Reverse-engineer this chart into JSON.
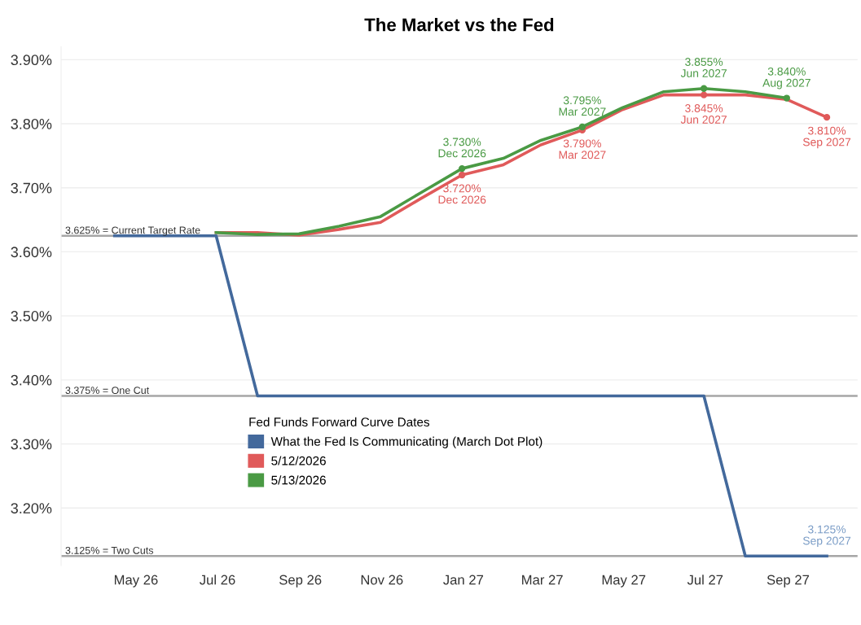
{
  "chart_data": {
    "type": "line",
    "title": "The Market vs the Fed",
    "legend_title": "Fed Funds Forward Curve Dates",
    "legend": "bottom",
    "grid": "y",
    "marker": "none",
    "line_style": "solid",
    "xlim": [
      "2026-03-06",
      "2027-10-23"
    ],
    "ylim": [
      3.11,
      3.92
    ],
    "xticks": [
      {
        "value": "2026-05-01",
        "label": "May 26"
      },
      {
        "value": "2026-07-01",
        "label": "Jul 26"
      },
      {
        "value": "2026-09-01",
        "label": "Sep 26"
      },
      {
        "value": "2026-11-01",
        "label": "Nov 26"
      },
      {
        "value": "2027-01-01",
        "label": "Jan 27"
      },
      {
        "value": "2027-03-01",
        "label": "Mar 27"
      },
      {
        "value": "2027-05-01",
        "label": "May 27"
      },
      {
        "value": "2027-07-01",
        "label": "Jul 27"
      },
      {
        "value": "2027-09-01",
        "label": "Sep 27"
      }
    ],
    "yticks": [
      {
        "value": 3.2,
        "label": "3.20%"
      },
      {
        "value": 3.3,
        "label": "3.30%"
      },
      {
        "value": 3.4,
        "label": "3.40%"
      },
      {
        "value": 3.5,
        "label": "3.50%"
      },
      {
        "value": 3.6,
        "label": "3.60%"
      },
      {
        "value": 3.7,
        "label": "3.70%"
      },
      {
        "value": 3.8,
        "label": "3.80%"
      },
      {
        "value": 3.9,
        "label": "3.90%"
      }
    ],
    "ref_lines": [
      {
        "axis": "y",
        "value": 3.625,
        "label": "3.625% = Current Target Rate",
        "color": "#a6a6a6"
      },
      {
        "axis": "y",
        "value": 3.375,
        "label": "3.375% = One Cut",
        "color": "#a6a6a6"
      },
      {
        "axis": "y",
        "value": 3.125,
        "label": "3.125% = Two Cuts",
        "color": "#a6a6a6"
      }
    ],
    "series": [
      {
        "name": "What the Fed Is Communicating (March Dot Plot)",
        "color": "#43699c",
        "x": [
          "2026-04-15",
          "2026-06-30",
          "2026-07-31",
          "2027-06-30",
          "2027-07-31",
          "2027-09-30"
        ],
        "values": [
          3.625,
          3.625,
          3.375,
          3.375,
          3.125,
          3.125
        ],
        "value_labels": [
          null,
          null,
          null,
          null,
          null,
          "3.125%\nSep 2027"
        ]
      },
      {
        "name": "5/12/2026",
        "color": "#e05a5a",
        "x": [
          "2026-06-30",
          "2026-07-31",
          "2026-08-31",
          "2026-09-30",
          "2026-10-31",
          "2026-11-30",
          "2026-12-31",
          "2027-01-31",
          "2027-02-28",
          "2027-03-31",
          "2027-04-30",
          "2027-05-31",
          "2027-06-30",
          "2027-07-31",
          "2027-08-31",
          "2027-09-30"
        ],
        "values": [
          3.63,
          3.63,
          3.626,
          3.635,
          3.646,
          3.683,
          3.72,
          3.736,
          3.767,
          3.79,
          3.822,
          3.845,
          3.845,
          3.845,
          3.838,
          3.81
        ],
        "value_labels": [
          null,
          null,
          null,
          null,
          null,
          null,
          "3.720%\nDec 2026",
          null,
          null,
          "3.790%\nMar 2027",
          null,
          null,
          "3.845%\nJun 2027",
          null,
          null,
          "3.810%\nSep 2027"
        ]
      },
      {
        "name": "5/13/2026",
        "color": "#4a9a44",
        "x": [
          "2026-06-30",
          "2026-07-31",
          "2026-08-31",
          "2026-09-30",
          "2026-10-31",
          "2026-11-30",
          "2026-12-31",
          "2027-01-31",
          "2027-02-28",
          "2027-03-31",
          "2027-04-30",
          "2027-05-31",
          "2027-06-30",
          "2027-07-31",
          "2027-08-31"
        ],
        "values": [
          3.63,
          3.627,
          3.628,
          3.64,
          3.655,
          3.692,
          3.73,
          3.746,
          3.774,
          3.795,
          3.825,
          3.85,
          3.855,
          3.85,
          3.84
        ],
        "value_labels": [
          null,
          null,
          null,
          null,
          null,
          null,
          "3.730%\nDec 2026",
          null,
          null,
          "3.795%\nMar 2027",
          null,
          null,
          "3.855%\nJun 2027",
          null,
          "3.840%\nAug 2027"
        ]
      }
    ]
  }
}
